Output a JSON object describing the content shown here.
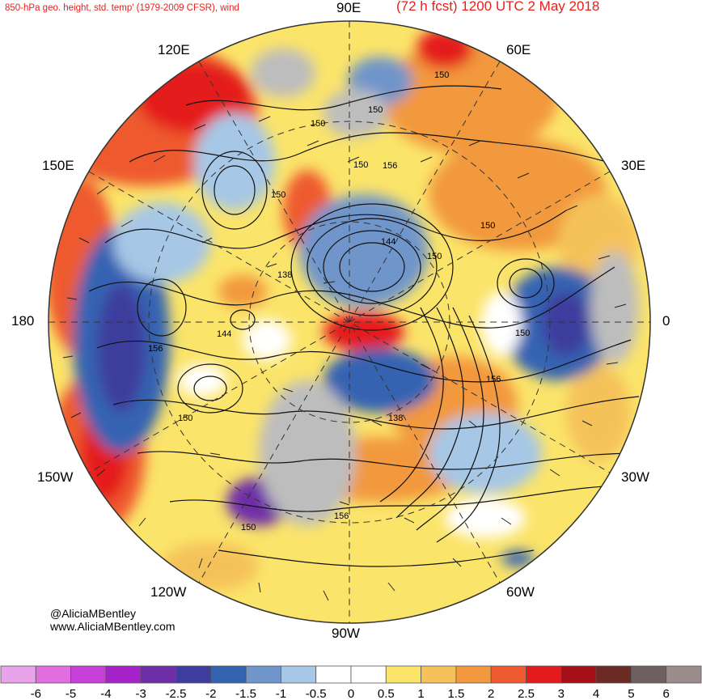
{
  "header": {
    "left_title": "850-hPa geo. height, std. temp' (1979-2009 CFSR), wind",
    "right_title": "(72 h fcst) 1200 UTC 2 May 2018"
  },
  "longitude_labels": {
    "e90": "90E",
    "e60": "60E",
    "e30": "30E",
    "zero": "0",
    "w30": "30W",
    "w60": "60W",
    "w90": "90W",
    "w120": "120W",
    "w150": "150W",
    "d180": "180",
    "e150": "150E",
    "e120": "120E"
  },
  "contour_labels": [
    "150",
    "150",
    "150",
    "150",
    "150",
    "156",
    "150",
    "144",
    "138",
    "150",
    "144",
    "156",
    "150",
    "150",
    "156",
    "138",
    "156",
    "150"
  ],
  "credits": {
    "handle": "@AliciaMBentley",
    "website": "www.AliciaMBentley.com"
  },
  "colorbar": {
    "labels": [
      "-6",
      "-5",
      "-4",
      "-3",
      "-2.5",
      "-2",
      "-1.5",
      "-1",
      "-0.5",
      "0",
      "0.5",
      "1",
      "1.5",
      "2",
      "2.5",
      "3",
      "4",
      "5",
      "6"
    ],
    "colors": [
      "#e9a3ea",
      "#e06ee0",
      "#c63fd6",
      "#a623c9",
      "#6e2fa8",
      "#3d3d9e",
      "#3463b2",
      "#6f95cb",
      "#a6c7e6",
      "#ffffff",
      "#ffffff",
      "#fbe46a",
      "#f5c25a",
      "#f2983e",
      "#ee5a2e",
      "#e41a1c",
      "#a50f15",
      "#6b2a23",
      "#6e6060",
      "#9c8c8c"
    ]
  },
  "colors": {
    "title_red": "#e8201b",
    "land_gray": "#bdbdbd"
  }
}
